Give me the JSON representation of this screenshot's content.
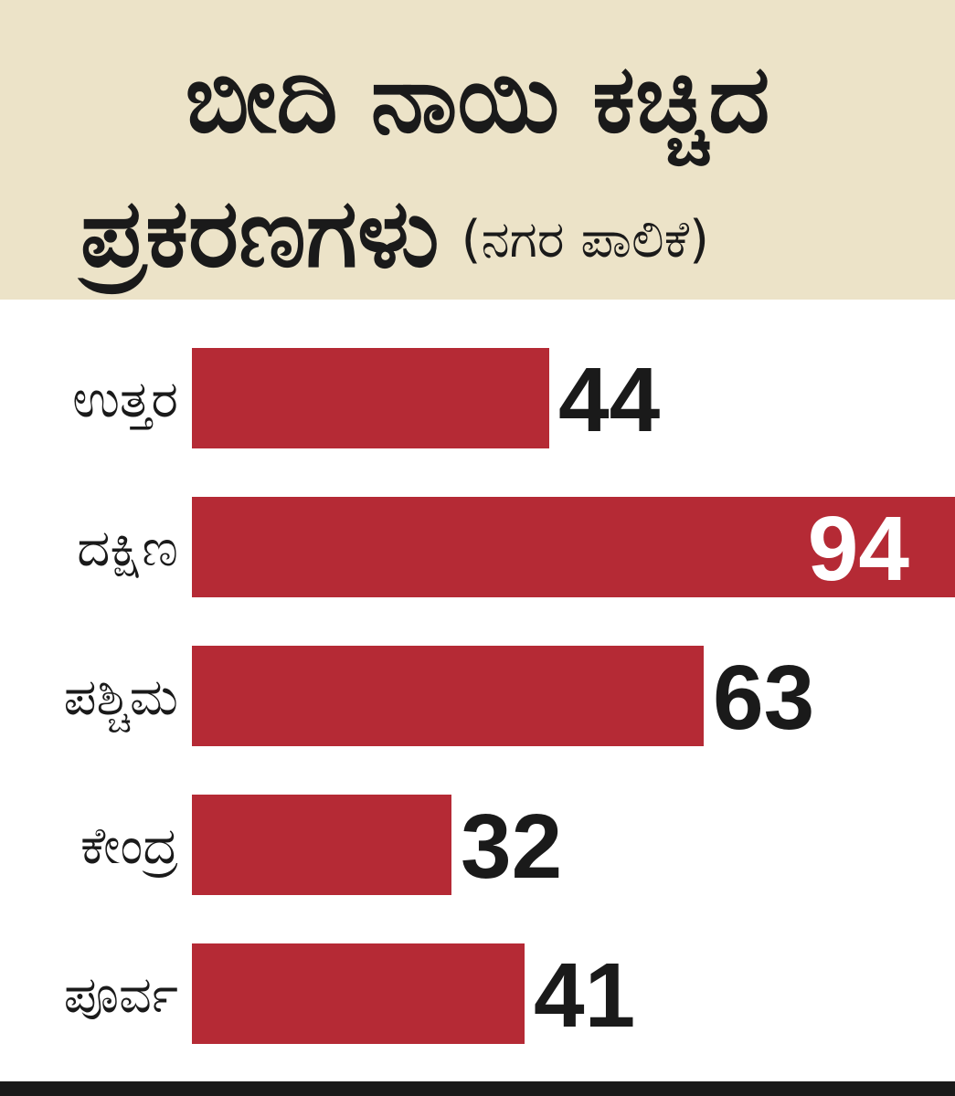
{
  "header": {
    "title_line1": "ಬೀದಿ ನಾಯಿ ಕಚ್ಚಿದ",
    "title_line2": "ಪ್ರಕರಣಗಳು",
    "subtitle": "(ನಗರ ಪಾಲಿಕೆ)"
  },
  "colors": {
    "bar": "#b52a35",
    "header_bg": "#ece3c8",
    "text": "#1a1a1a",
    "inside_label": "#ffffff"
  },
  "chart_data": {
    "type": "bar",
    "orientation": "horizontal",
    "title": "ಬೀದಿ ನಾಯಿ ಕಚ್ಚಿದ ಪ್ರಕರಣಗಳು (ನಗರ ಪಾಲಿಕೆ)",
    "categories": [
      "ಉತ್ತರ",
      "ದಕ್ಷಿಣ",
      "ಪಶ್ಚಿಮ",
      "ಕೇಂದ್ರ",
      "ಪೂರ್ವ"
    ],
    "values": [
      44,
      94,
      63,
      32,
      41
    ],
    "value_labels": [
      "44",
      "94",
      "63",
      "32",
      "41"
    ],
    "xlim": [
      0,
      94
    ],
    "grid": false,
    "legend": "none",
    "data_labels": "end"
  }
}
